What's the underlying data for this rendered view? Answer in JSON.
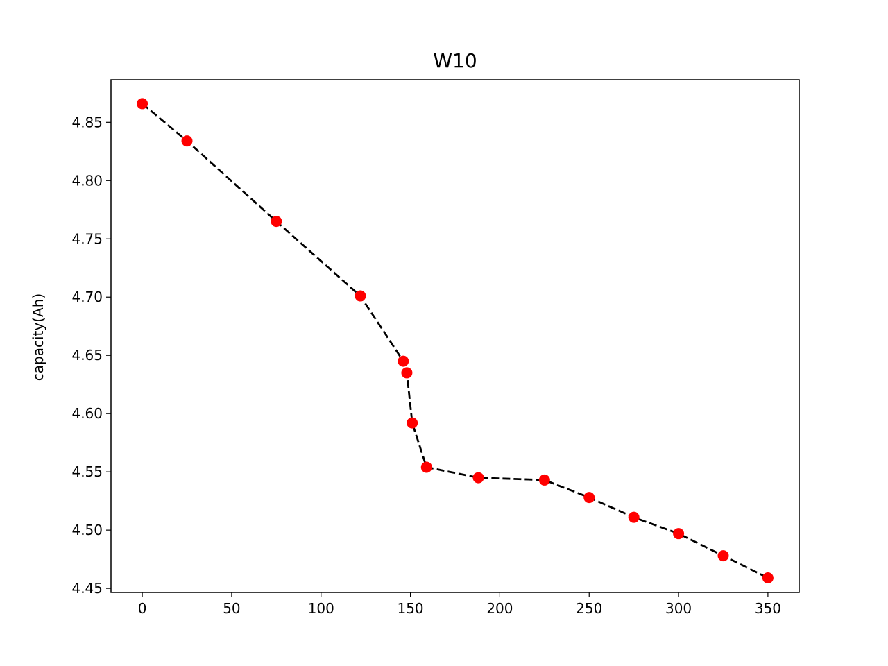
{
  "chart_data": {
    "type": "line",
    "title": "W10",
    "xlabel": "",
    "ylabel": "capacity(Ah)",
    "xlim": [
      -17.5,
      367.5
    ],
    "ylim": [
      4.4465,
      4.8865
    ],
    "x_ticks": [
      0,
      50,
      100,
      150,
      200,
      250,
      300,
      350
    ],
    "x_tick_labels": [
      "0",
      "50",
      "100",
      "150",
      "200",
      "250",
      "300",
      "350"
    ],
    "y_ticks": [
      4.45,
      4.5,
      4.55,
      4.6,
      4.65,
      4.7,
      4.75,
      4.8,
      4.85
    ],
    "y_tick_labels": [
      "4.45",
      "4.50",
      "4.55",
      "4.60",
      "4.65",
      "4.70",
      "4.75",
      "4.80",
      "4.85"
    ],
    "grid": false,
    "series": [
      {
        "line_style": "dashed",
        "line_color": "#000000",
        "marker_color": "#ff0000",
        "x": [
          0,
          25,
          75,
          122,
          146,
          148,
          151,
          159,
          188,
          225,
          250,
          275,
          300,
          325,
          350
        ],
        "y": [
          4.866,
          4.834,
          4.765,
          4.701,
          4.645,
          4.635,
          4.592,
          4.554,
          4.545,
          4.543,
          4.528,
          4.511,
          4.497,
          4.478,
          4.459
        ]
      }
    ]
  }
}
